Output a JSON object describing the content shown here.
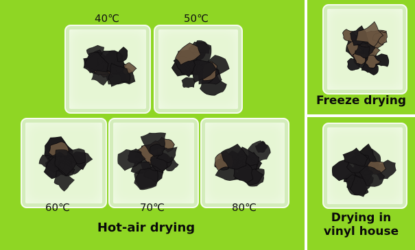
{
  "figure": {
    "hot_air_caption": "Hot-air drying",
    "freeze_caption": "Freeze drying",
    "vinyl_caption": "Drying in vinyl house",
    "vinyl_caption_lines": [
      "Drying in",
      "vinyl house"
    ],
    "temperatures": [
      "40℃",
      "50℃",
      "60℃",
      "70℃",
      "80℃"
    ]
  },
  "colors": {
    "background": "#8fd624",
    "tray": "#e6f6d4",
    "mushroom_dark": "#1c1a1c",
    "mushroom_brown": "#6a5540"
  }
}
